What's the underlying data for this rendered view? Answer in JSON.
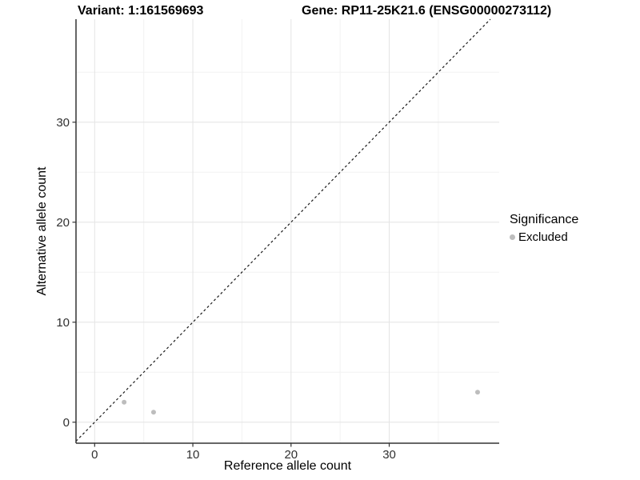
{
  "titles": {
    "variant": "Variant: 1:161569693",
    "gene": "Gene: RP11-25K21.6 (ENSG00000273112)"
  },
  "axes": {
    "x_label": "Reference allele count",
    "y_label": "Alternative allele count"
  },
  "legend": {
    "title": "Significance",
    "items": [
      {
        "label": "Excluded",
        "color": "#bdbdbd"
      }
    ]
  },
  "chart_data": {
    "type": "scatter",
    "title": "Variant: 1:161569693   Gene: RP11-25K21.6 (ENSG00000273112)",
    "xlabel": "Reference allele count",
    "ylabel": "Alternative allele count",
    "xlim": [
      -1.9,
      41.2
    ],
    "ylim": [
      -2.1,
      40.3
    ],
    "x_ticks": [
      0,
      10,
      20,
      30
    ],
    "y_ticks": [
      0,
      10,
      20,
      30
    ],
    "x_minor_ticks": [
      5,
      15,
      25,
      35
    ],
    "y_minor_ticks": [
      5,
      15,
      25,
      35
    ],
    "grid": true,
    "legend_position": "right",
    "series": [
      {
        "name": "Excluded",
        "color": "#bdbdbd",
        "points": [
          [
            3,
            2
          ],
          [
            6,
            1
          ],
          [
            39,
            3
          ]
        ]
      }
    ],
    "reference_line": {
      "type": "identity",
      "style": "dashed",
      "color": "#1a1a1a"
    }
  },
  "colors": {
    "background": "#ffffff",
    "grid_major": "#e4e4e4",
    "grid_minor": "#f2f2f2",
    "axis_line": "#333333",
    "tick_label": "#303030",
    "point": "#bdbdbd"
  }
}
